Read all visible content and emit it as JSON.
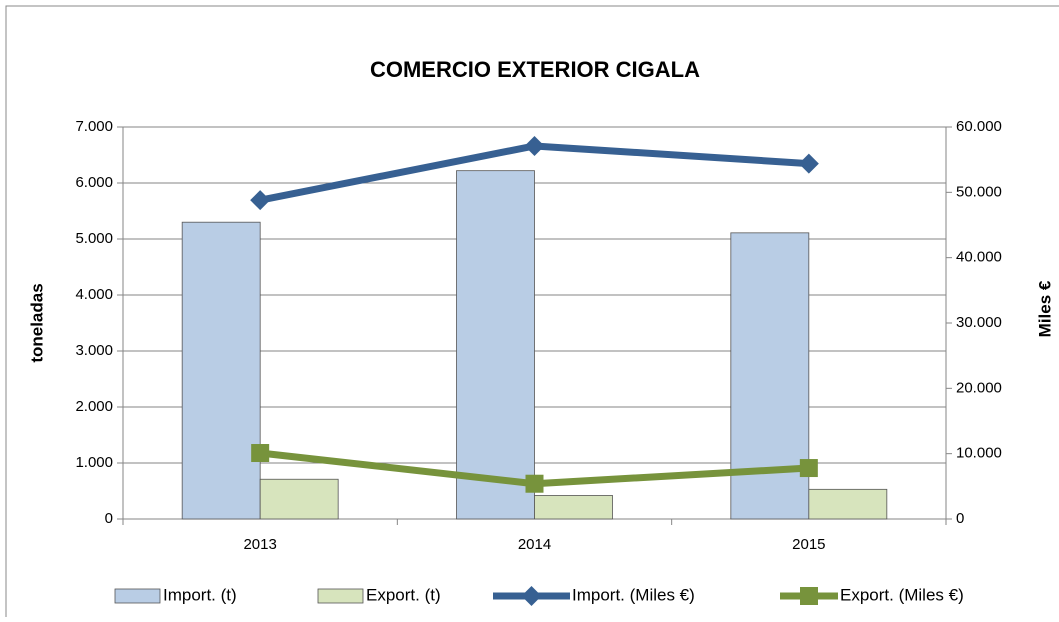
{
  "chart_data": {
    "type": "bar",
    "title": "COMERCIO EXTERIOR CIGALA",
    "categories": [
      "2013",
      "2014",
      "2015"
    ],
    "ylabel": "toneladas",
    "y2label": "Miles €",
    "series": [
      {
        "name": "Import. (t)",
        "type": "bar",
        "color": "#b9cde5",
        "values": [
          5300,
          6220,
          5110
        ]
      },
      {
        "name": "Export. (t)",
        "type": "bar",
        "color": "#d7e4bd",
        "values": [
          710,
          420,
          530
        ]
      },
      {
        "name": "Import. (Miles €)",
        "type": "line",
        "axis": "y2",
        "marker": "diamond",
        "color": "#376092",
        "values": [
          48800,
          57100,
          54400
        ]
      },
      {
        "name": "Export. (Miles €)",
        "type": "line",
        "axis": "y2",
        "marker": "square",
        "color": "#77933c",
        "values": [
          10100,
          5400,
          7800
        ]
      }
    ],
    "ylim": [
      0,
      7000
    ],
    "yticks": [
      0,
      {
        "value": 1000,
        "label": "1.000"
      },
      {
        "value": 2000,
        "label": "2.000"
      },
      {
        "value": 3000,
        "label": "3.000"
      },
      {
        "value": 4000,
        "label": "4.000"
      },
      {
        "value": 5000,
        "label": "5.000"
      },
      {
        "value": 6000,
        "label": "6.000"
      },
      {
        "value": 7000,
        "label": "7.000"
      }
    ],
    "y2lim": [
      0,
      60000
    ],
    "y2ticks": [
      0,
      {
        "value": 10000,
        "label": "10.000"
      },
      {
        "value": 20000,
        "label": "20.000"
      },
      {
        "value": 30000,
        "label": "30.000"
      },
      {
        "value": 40000,
        "label": "40.000"
      },
      {
        "value": 50000,
        "label": "50.000"
      },
      {
        "value": 60000,
        "label": "60.000"
      }
    ],
    "grid": true,
    "legend": "bottom"
  }
}
